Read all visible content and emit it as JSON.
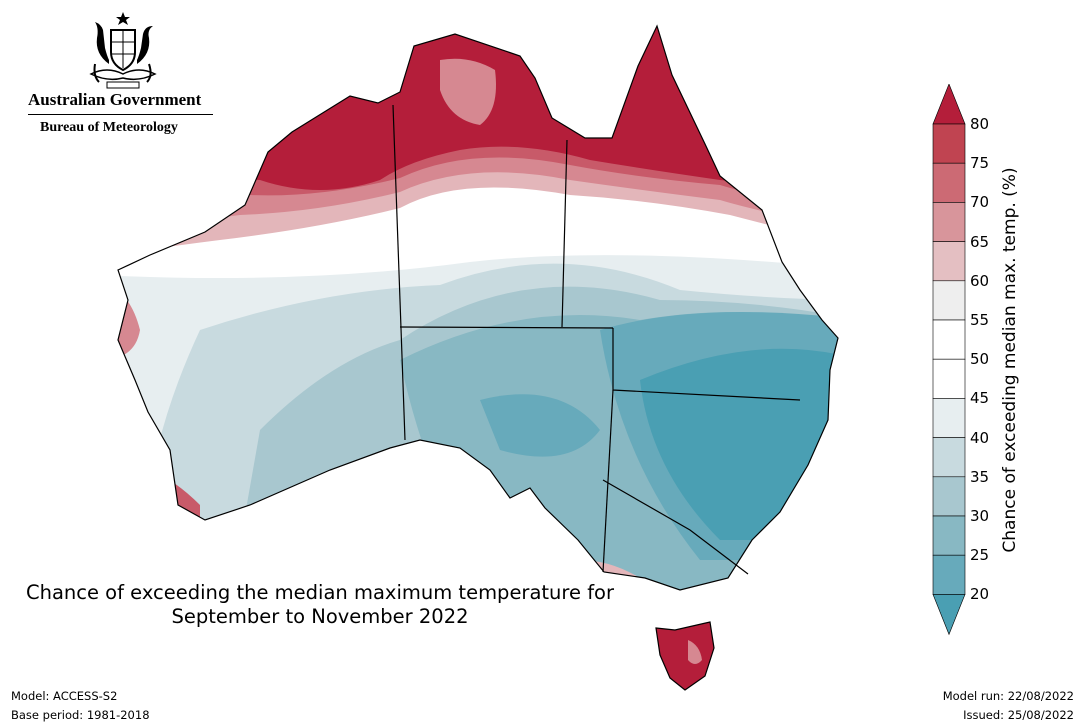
{
  "branding": {
    "government": "Australian Government",
    "agency": "Bureau of Meteorology",
    "crest_icon": "coat-of-arms-icon"
  },
  "map": {
    "title_line1": "Chance of exceeding the median maximum temperature for",
    "title_line2": "September to November 2022",
    "colors": {
      "very_high": "#b41e3a",
      "high": "#c85a69",
      "mid_high": "#d68891",
      "low_high": "#e3b6ba",
      "neutral_warm": "#eeeeee",
      "neutral": "#ffffff",
      "neutral_cool": "#e7eef0",
      "low_cool": "#c8dadf",
      "mid_cool": "#a8c7cf",
      "cool": "#88b8c3",
      "very_cool": "#4a9fb3"
    }
  },
  "legend": {
    "title": "Chance of exceeding median max. temp. (%)",
    "ticks": [
      "80",
      "75",
      "70",
      "65",
      "60",
      "55",
      "50",
      "45",
      "40",
      "35",
      "30",
      "25",
      "20"
    ],
    "bins": [
      {
        "range": ">80",
        "color": "#b41e3a"
      },
      {
        "range": "75-80",
        "color": "#c04451"
      },
      {
        "range": "70-75",
        "color": "#cc6a74"
      },
      {
        "range": "65-70",
        "color": "#d8959b"
      },
      {
        "range": "60-65",
        "color": "#e4bfc2"
      },
      {
        "range": "55-60",
        "color": "#eeeeee"
      },
      {
        "range": "50-55",
        "color": "#ffffff"
      },
      {
        "range": "45-50",
        "color": "#ffffff"
      },
      {
        "range": "40-45",
        "color": "#e7eef0"
      },
      {
        "range": "35-40",
        "color": "#c8dadf"
      },
      {
        "range": "30-35",
        "color": "#a8c7cf"
      },
      {
        "range": "25-30",
        "color": "#88b8c3"
      },
      {
        "range": "20-25",
        "color": "#67aabb"
      },
      {
        "range": "<20",
        "color": "#4a9fb3"
      }
    ]
  },
  "footer": {
    "model": "Model: ACCESS-S2",
    "base_period": "Base period: 1981-2018",
    "model_run": "Model run: 22/08/2022",
    "issued": "Issued: 25/08/2022"
  }
}
